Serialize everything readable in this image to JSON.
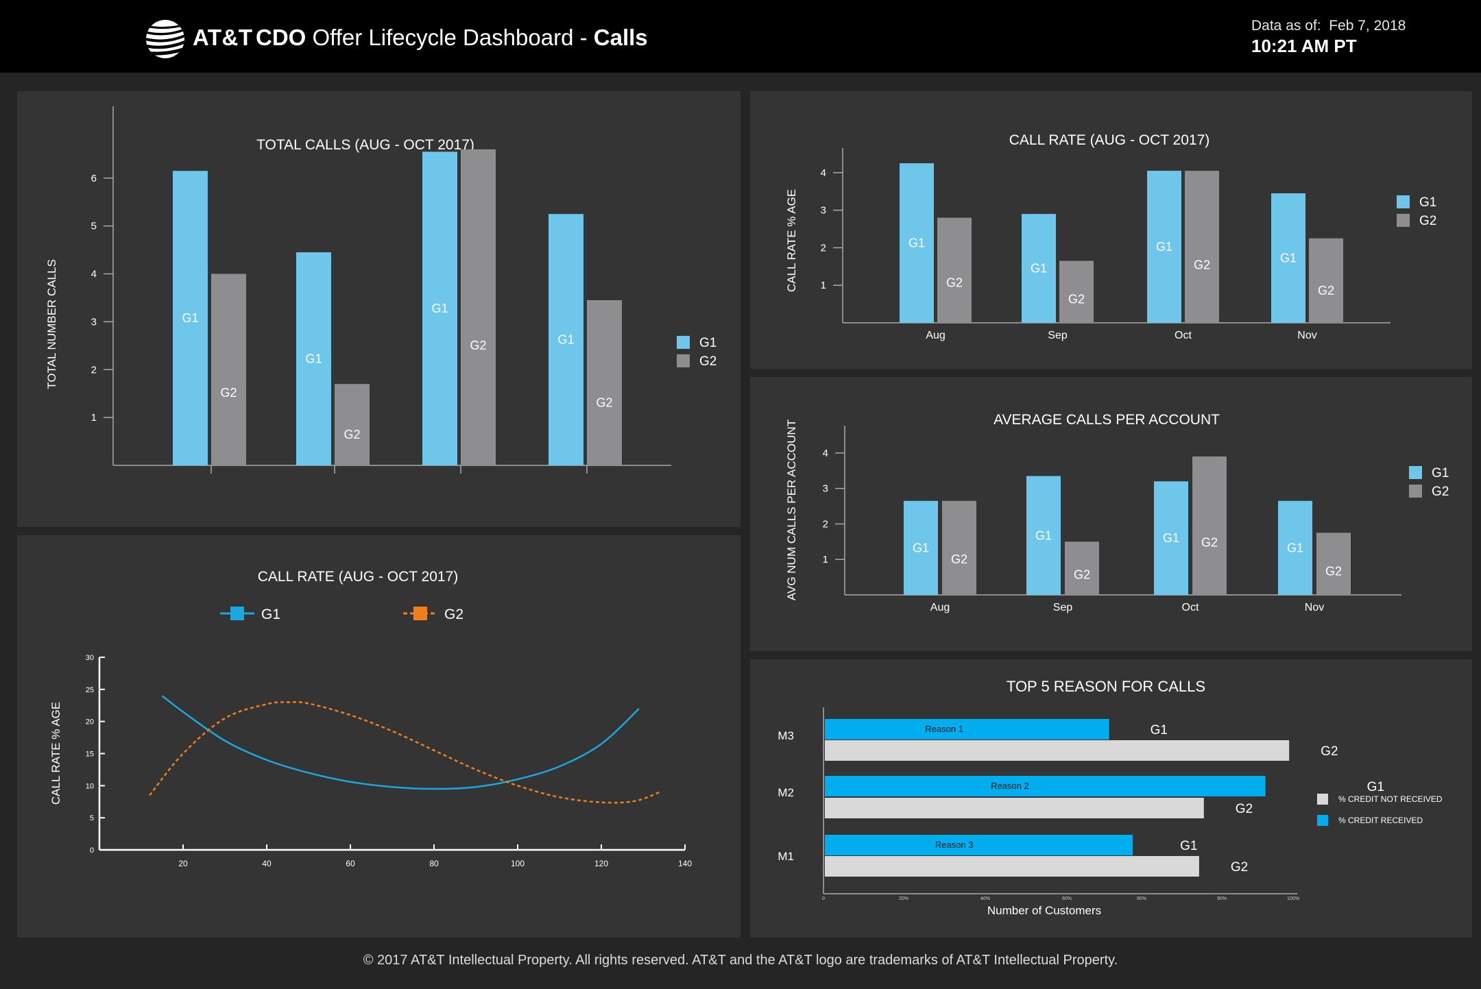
{
  "header": {
    "brand": "AT&T",
    "title_bold_prefix": "CDO",
    "title_main": " Offer Lifecycle Dashboard - ",
    "title_bold_suffix": "Calls",
    "as_of_label": "Data as of:",
    "as_of_date": "Feb 7, 2018",
    "as_of_time": "10:21 AM PT"
  },
  "colors": {
    "g1": "#6ec6ea",
    "g2": "#8e8e90",
    "line_g1": "#1ba8e0",
    "line_g2": "#f07f1a",
    "hbar_g1": "#00aeef",
    "hbar_g2": "#d9d9d9"
  },
  "icons": {
    "logo": "att-globe-icon"
  },
  "chart_data": [
    {
      "id": "total_calls",
      "type": "bar",
      "title": "TOTAL CALLS (AUG - OCT 2017)",
      "ylabel": "TOTAL NUMBER CALLS",
      "xlabel": "",
      "yticks": [
        "1",
        "2",
        "3",
        "4",
        "5",
        "6"
      ],
      "ylim": [
        0,
        7.3
      ],
      "categories": [
        "",
        "",
        "",
        ""
      ],
      "series": [
        {
          "name": "G1",
          "values": [
            6.15,
            4.45,
            6.55,
            5.25
          ]
        },
        {
          "name": "G2",
          "values": [
            4.0,
            1.7,
            6.6,
            3.45
          ]
        }
      ],
      "legend": "right"
    },
    {
      "id": "call_rate_bar",
      "type": "bar",
      "title": "CALL RATE (AUG - OCT 2017)",
      "ylabel": "CALL RATE % AGE",
      "xlabel": "",
      "yticks": [
        "1",
        "2",
        "3",
        "4"
      ],
      "ylim": [
        0,
        4.4
      ],
      "categories": [
        "Aug",
        "Sep",
        "Oct",
        "Nov"
      ],
      "series": [
        {
          "name": "G1",
          "values": [
            4.25,
            2.9,
            4.05,
            3.45
          ]
        },
        {
          "name": "G2",
          "values": [
            2.8,
            1.65,
            4.05,
            2.25
          ]
        }
      ],
      "legend": "right"
    },
    {
      "id": "avg_calls",
      "type": "bar",
      "title": "AVERAGE CALLS PER ACCOUNT",
      "ylabel": "AVG NUM CALLS PER ACCOUNT",
      "xlabel": "",
      "yticks": [
        "1",
        "2",
        "3",
        "4"
      ],
      "ylim": [
        0,
        4.5
      ],
      "categories": [
        "Aug",
        "Sep",
        "Oct",
        "Nov"
      ],
      "series": [
        {
          "name": "G1",
          "values": [
            2.65,
            3.35,
            3.2,
            2.65
          ]
        },
        {
          "name": "G2",
          "values": [
            2.65,
            1.5,
            3.9,
            1.75
          ]
        }
      ],
      "legend": "right"
    },
    {
      "id": "call_rate_line",
      "type": "line",
      "title": "CALL RATE (AUG - OCT 2017)",
      "ylabel": "CALL RATE % AGE",
      "xlabel": "",
      "xlim": [
        0,
        140
      ],
      "ylim": [
        0,
        30
      ],
      "xticks": [
        "20",
        "40",
        "60",
        "80",
        "100",
        "120",
        "140"
      ],
      "yticks": [
        "0",
        "5",
        "10",
        "15",
        "20",
        "25",
        "30"
      ],
      "series": [
        {
          "name": "G1",
          "style": "solid",
          "x": [
            15,
            20,
            30,
            40,
            50,
            60,
            70,
            80,
            90,
            100,
            110,
            120,
            129
          ],
          "y": [
            24,
            21.5,
            17,
            14,
            12,
            10.6,
            9.8,
            9.5,
            9.8,
            11,
            13,
            16.5,
            22
          ]
        },
        {
          "name": "G2",
          "style": "dashed",
          "x": [
            12,
            20,
            30,
            40,
            45,
            50,
            60,
            70,
            80,
            90,
            100,
            110,
            120,
            128,
            134
          ],
          "y": [
            8.5,
            15,
            20.5,
            22.7,
            23,
            22.8,
            21,
            18.5,
            15.5,
            12.5,
            10,
            8.2,
            7.4,
            7.6,
            9
          ]
        }
      ],
      "legend": "top"
    },
    {
      "id": "top5_reasons",
      "type": "bar",
      "orientation": "horizontal",
      "title": "TOP 5 REASON FOR CALLS",
      "xlabel": "Number of Customers",
      "ylabel": "",
      "xlim": [
        0,
        100
      ],
      "xticks": [
        "0",
        "20%",
        "40%",
        "60%",
        "80%",
        "90%",
        "100%"
      ],
      "categories": [
        "M3",
        "M2",
        "M1"
      ],
      "series": [
        {
          "name": "G1",
          "values": [
            60,
            93,
            65
          ],
          "bar_labels": [
            "Reason 1",
            "Reason 2",
            "Reason 3"
          ]
        },
        {
          "name": "G2",
          "values": [
            98,
            80,
            79
          ]
        }
      ],
      "legend_entries": [
        {
          "label": "% CREDIT NOT RECEIVED",
          "color": "#d9d9d9"
        },
        {
          "label": "% CREDIT RECEIVED",
          "color": "#00aeef"
        }
      ],
      "legend": "right"
    }
  ],
  "footer": {
    "text": "© 2017 AT&T Intellectual Property. All rights reserved. AT&T and the AT&T logo are trademarks of AT&T Intellectual Property."
  }
}
